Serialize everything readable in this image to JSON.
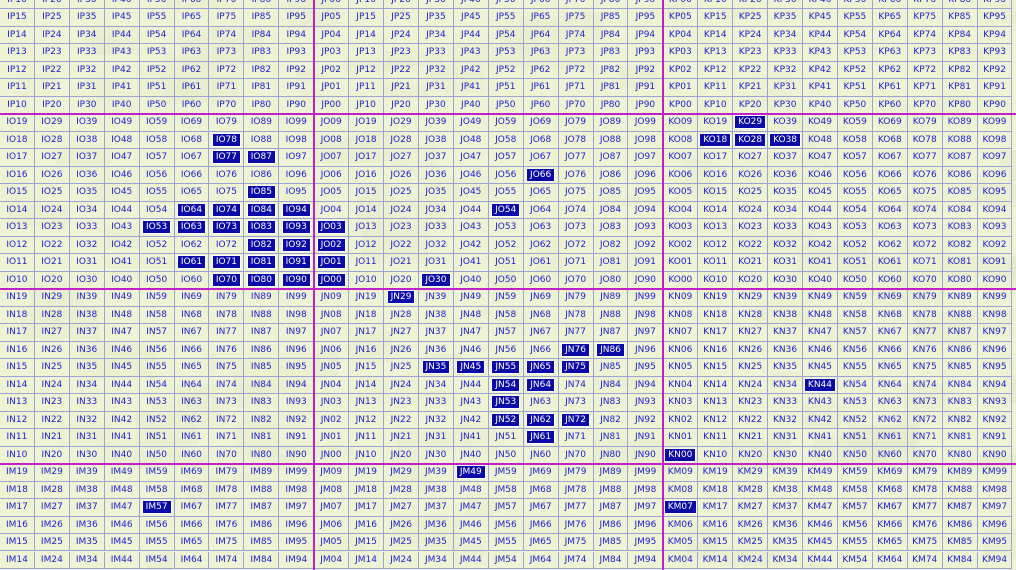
{
  "map": {
    "row_numbers": [
      6,
      5,
      4,
      3,
      2,
      1,
      0,
      9,
      8,
      7,
      6,
      5,
      4,
      3,
      2,
      1,
      0,
      9,
      8,
      7,
      6,
      5,
      4,
      3,
      2,
      1,
      0,
      9,
      8,
      7,
      6,
      5,
      4
    ],
    "row_letters": [
      "P",
      "P",
      "P",
      "P",
      "P",
      "P",
      "P",
      "O",
      "O",
      "O",
      "O",
      "O",
      "O",
      "O",
      "O",
      "O",
      "O",
      "N",
      "N",
      "N",
      "N",
      "N",
      "N",
      "N",
      "N",
      "N",
      "N",
      "M",
      "M",
      "M",
      "M",
      "M",
      "M"
    ],
    "major_column_letters": [
      "I",
      "J",
      "K"
    ],
    "minor_digits": [
      0,
      1,
      2,
      3,
      4,
      5,
      6,
      7,
      8,
      9
    ],
    "selected_cells": [
      "IO78",
      "IO77",
      "IO87",
      "IO85",
      "IO64",
      "IO74",
      "IO84",
      "IO94",
      "IO53",
      "IO63",
      "IO73",
      "IO83",
      "IO93",
      "JO03",
      "IO82",
      "IO92",
      "JO02",
      "IO61",
      "IO71",
      "IO81",
      "IO91",
      "JO01",
      "IO70",
      "IO80",
      "IO90",
      "JO00",
      "JO30",
      "JO66",
      "JO54",
      "KO29",
      "KO18",
      "KO28",
      "KO38",
      "JN29",
      "JN76",
      "JN86",
      "JN35",
      "JN45",
      "JN55",
      "JN65",
      "JN75",
      "JN54",
      "JN64",
      "JN53",
      "JN52",
      "JN62",
      "JN72",
      "JN61",
      "KN44",
      "KN00",
      "JM49",
      "IM57",
      "KM07"
    ],
    "colors": {
      "band_line": "#c020c8",
      "cell_text": "#2020d8",
      "selected_bg": "#0a0aa8",
      "selected_text": "#ffffff",
      "cell_bg": "#eef3d2",
      "grid_line": "#9aa2d6"
    }
  }
}
